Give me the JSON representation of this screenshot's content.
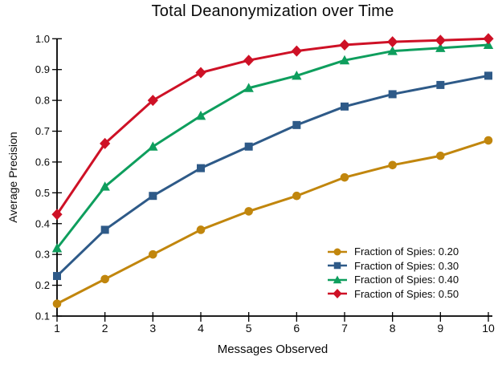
{
  "figure": {
    "title": "Total Deanonymization over Time",
    "xlabel": "Messages Observed",
    "ylabel": "Average Precision"
  },
  "chart_data": {
    "type": "line",
    "title": "Total Deanonymization over Time",
    "xlabel": "Messages Observed",
    "ylabel": "Average Precision",
    "x": [
      1,
      2,
      3,
      4,
      5,
      6,
      7,
      8,
      9,
      10
    ],
    "xlim": [
      1,
      10
    ],
    "ylim": [
      0.1,
      1.0
    ],
    "xticks": [
      1,
      2,
      3,
      4,
      5,
      6,
      7,
      8,
      9,
      10
    ],
    "yticks": [
      0.1,
      0.2,
      0.3,
      0.4,
      0.5,
      0.6,
      0.7,
      0.8,
      0.9,
      1.0
    ],
    "grid": false,
    "legend_position": "lower right",
    "legend_frame": false,
    "series": [
      {
        "name": "Fraction of Spies: 0.20",
        "marker": "circle",
        "color": "#C1860D",
        "values": [
          0.14,
          0.22,
          0.3,
          0.38,
          0.44,
          0.49,
          0.55,
          0.59,
          0.62,
          0.67
        ]
      },
      {
        "name": "Fraction of Spies: 0.30",
        "marker": "square",
        "color": "#2E5A88",
        "values": [
          0.23,
          0.38,
          0.49,
          0.58,
          0.65,
          0.72,
          0.78,
          0.82,
          0.85,
          0.88
        ]
      },
      {
        "name": "Fraction of Spies: 0.40",
        "marker": "triangle-up",
        "color": "#0E9E5D",
        "values": [
          0.32,
          0.52,
          0.65,
          0.75,
          0.84,
          0.88,
          0.93,
          0.96,
          0.97,
          0.98
        ]
      },
      {
        "name": "Fraction of Spies: 0.50",
        "marker": "diamond",
        "color": "#CE1126",
        "values": [
          0.43,
          0.66,
          0.8,
          0.89,
          0.93,
          0.96,
          0.98,
          0.99,
          0.995,
          1.0
        ]
      }
    ],
    "axis_color": "#000000",
    "background_color": "#ffffff"
  }
}
